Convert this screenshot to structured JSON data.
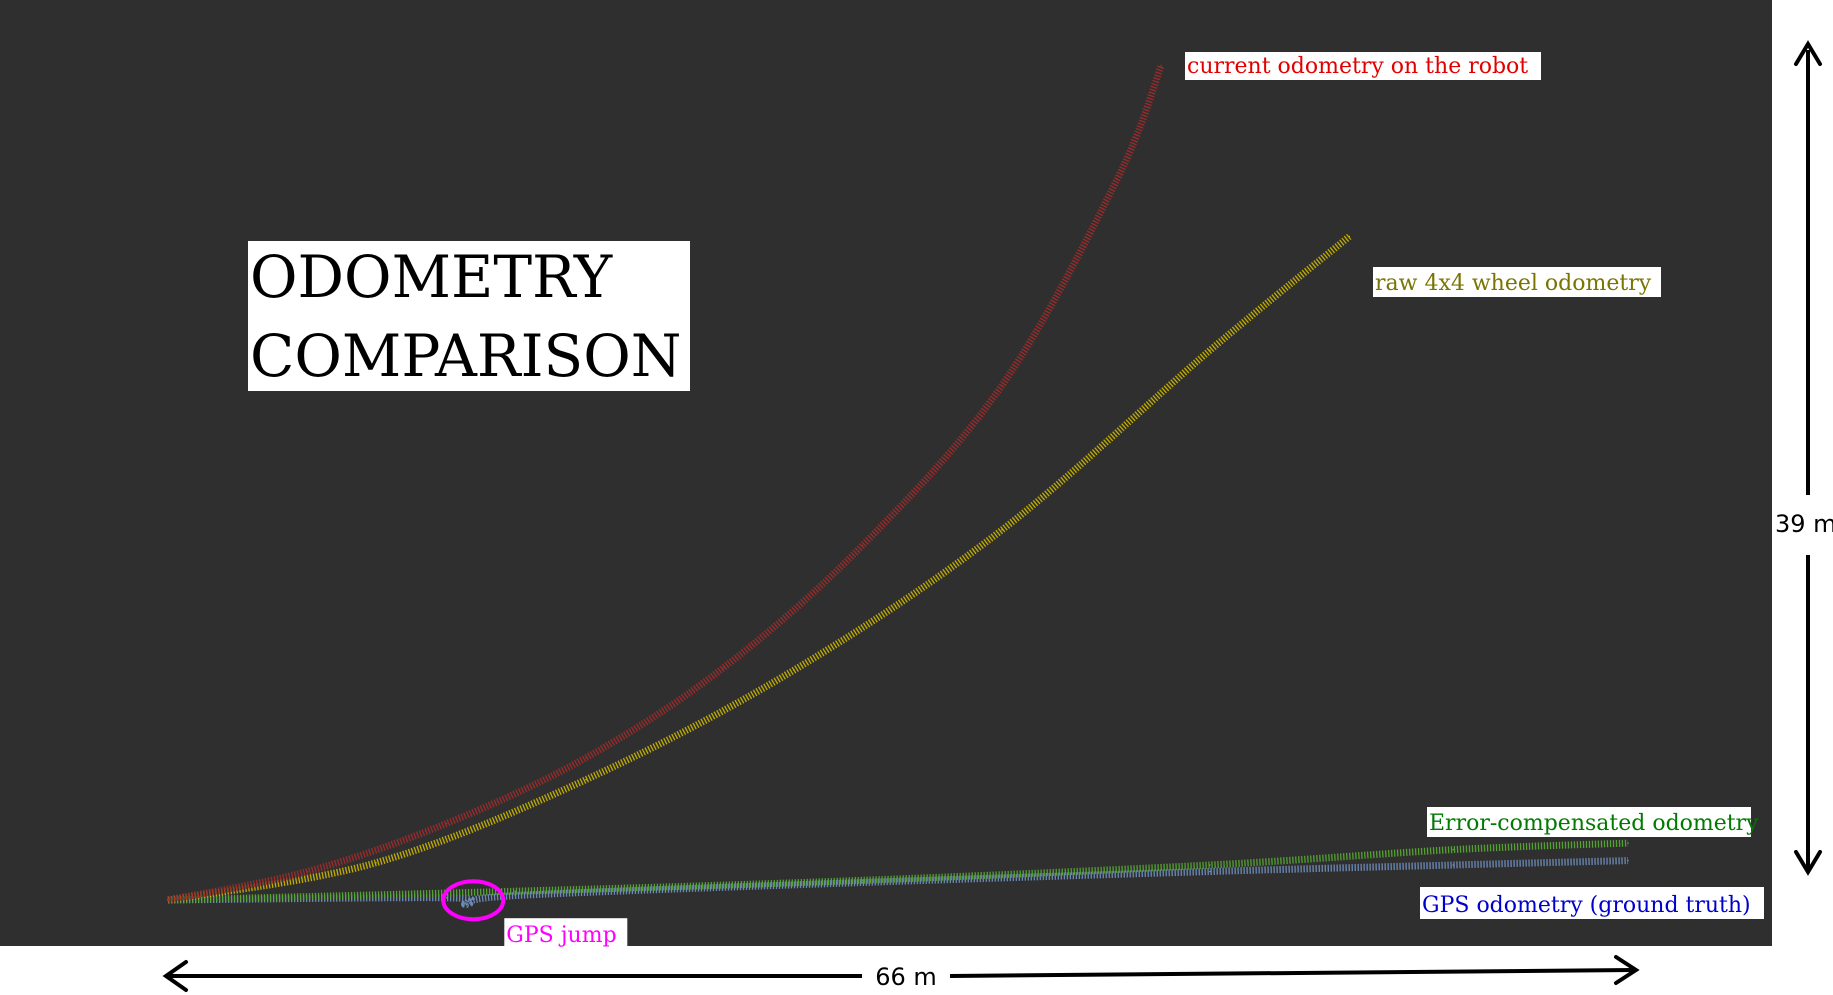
{
  "chart_data": {
    "type": "line",
    "title": "ODOMETRY COMPARISON",
    "title_lines": [
      "ODOMETRY",
      "COMPARISON"
    ],
    "x_extent": {
      "value": 66,
      "unit": "m",
      "label": "66 m"
    },
    "y_extent": {
      "value": 39,
      "unit": "m",
      "label": "39 m"
    },
    "grid": false,
    "series": [
      {
        "name": "current odometry on the robot",
        "color": "#e00000",
        "line_color": "#a52a2a",
        "x": [
          0,
          6.3,
          12.6,
          18.9,
          25.1,
          31.4,
          37.7,
          42.9,
          44.9
        ],
        "y": [
          0,
          1.3,
          3.5,
          6.5,
          10.6,
          16.2,
          23.5,
          32.9,
          38.1
        ]
      },
      {
        "name": "raw 4x4 wheel odometry",
        "color": "#7a7400",
        "line_color": "#c8b400",
        "x": [
          0,
          9.4,
          18.9,
          28.3,
          37.7,
          47.1,
          53.4
        ],
        "y": [
          0,
          1.7,
          5.5,
          10.5,
          16.9,
          25.1,
          30.3
        ]
      },
      {
        "name": "Error-compensated odometry",
        "color": "#007a00",
        "line_color": "#55a830",
        "x": [
          0,
          15.7,
          31.4,
          47.1,
          58.1,
          66
        ],
        "y": [
          0,
          0.4,
          0.9,
          1.6,
          2.3,
          2.6
        ]
      },
      {
        "name": "GPS odometry (ground truth)",
        "color": "#0000cc",
        "line_color": "#6f8fbf",
        "x": [
          0,
          12.6,
          13.5,
          15.7,
          31.4,
          47.1,
          58.1,
          66
        ],
        "y": [
          0,
          0.1,
          -0.2,
          0.2,
          0.8,
          1.3,
          1.6,
          1.8
        ]
      }
    ],
    "annotations": [
      {
        "text": "GPS jump",
        "color": "#ff00ff",
        "x": 13.8,
        "y": -0.1
      }
    ]
  }
}
